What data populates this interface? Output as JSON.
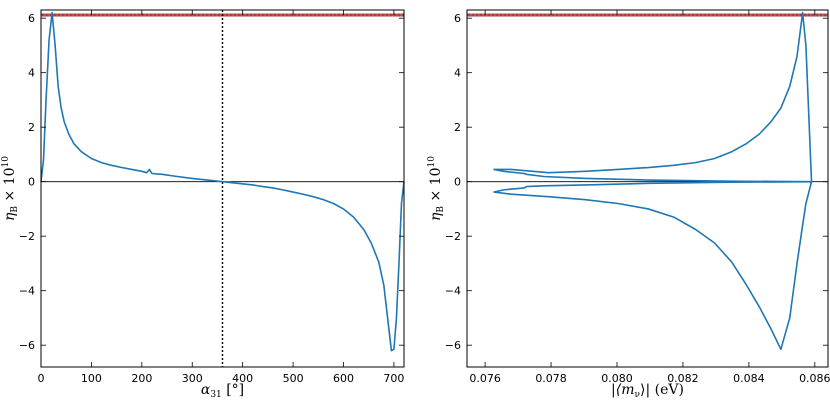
{
  "chart_data": [
    {
      "type": "line",
      "xlabel": {
        "main": "α",
        "sub": "31",
        "rest": " [°]"
      },
      "ylabel": {
        "main": "η",
        "sub": "B",
        "rest": " × 10",
        "sup": "10"
      },
      "xlim": [
        0,
        720
      ],
      "ylim": [
        -6.8,
        6.3
      ],
      "xticks": [
        0,
        100,
        200,
        300,
        400,
        500,
        600,
        700
      ],
      "yticks": [
        -6,
        -4,
        -2,
        0,
        2,
        4,
        6
      ],
      "xticklabels": [
        "0",
        "100",
        "200",
        "300",
        "400",
        "500",
        "600",
        "700"
      ],
      "yticklabels": [
        "−6",
        "−4",
        "−2",
        "0",
        "2",
        "4",
        "6"
      ],
      "observed_band": {
        "y_low": 6.07,
        "y_high": 6.17,
        "color": "#c0504d"
      },
      "hline": 0,
      "vline": 360,
      "series": [
        {
          "color": "#1f77b4",
          "x": [
            0,
            5,
            10,
            16,
            22,
            28,
            34,
            40,
            46,
            55,
            65,
            80,
            100,
            120,
            140,
            160,
            180,
            200,
            210,
            215,
            220,
            240,
            270,
            300,
            330,
            360,
            390,
            420,
            430,
            440,
            460,
            480,
            500,
            520,
            540,
            560,
            580,
            600,
            620,
            640,
            655,
            670,
            680,
            685,
            690,
            695,
            700,
            705,
            710,
            715,
            720
          ],
          "y": [
            0,
            0.8,
            3.0,
            5.2,
            6.2,
            5.0,
            3.5,
            2.7,
            2.2,
            1.75,
            1.4,
            1.1,
            0.85,
            0.7,
            0.6,
            0.52,
            0.45,
            0.38,
            0.33,
            0.45,
            0.3,
            0.27,
            0.19,
            0.12,
            0.06,
            0,
            -0.06,
            -0.12,
            -0.15,
            -0.18,
            -0.23,
            -0.3,
            -0.38,
            -0.46,
            -0.55,
            -0.66,
            -0.8,
            -1.0,
            -1.3,
            -1.75,
            -2.25,
            -2.95,
            -3.8,
            -4.6,
            -5.4,
            -6.2,
            -6.15,
            -5.0,
            -3.0,
            -0.8,
            0
          ]
        }
      ]
    },
    {
      "type": "line",
      "xlabel": {
        "main": "|⟨m",
        "sub": "ν",
        "rest": "⟩| (eV)"
      },
      "ylabel": {
        "main": "η",
        "sub": "B",
        "rest": " × 10",
        "sup": "10"
      },
      "xlim": [
        0.07545,
        0.0864
      ],
      "ylim": [
        -6.8,
        6.3
      ],
      "xticks": [
        0.076,
        0.078,
        0.08,
        0.082,
        0.084,
        0.086
      ],
      "yticks": [
        -6,
        -4,
        -2,
        0,
        2,
        4,
        6
      ],
      "xticklabels": [
        "0.076",
        "0.078",
        "0.080",
        "0.082",
        "0.084",
        "0.086"
      ],
      "yticklabels": [
        "−6",
        "−4",
        "−2",
        "0",
        "2",
        "4",
        "6"
      ],
      "observed_band": {
        "y_low": 6.07,
        "y_high": 6.17,
        "color": "#c0504d"
      },
      "hline": 0,
      "series": [
        {
          "color": "#1f77b4",
          "x": [
            0.0859,
            0.08573,
            0.08563,
            0.08546,
            0.08524,
            0.08497,
            0.08467,
            0.08432,
            0.08393,
            0.08348,
            0.08296,
            0.08238,
            0.08172,
            0.08095,
            0.08003,
            0.07904,
            0.07792,
            0.07679,
            0.07627,
            0.07656,
            0.07719,
            0.07725,
            0.07778,
            0.07906,
            0.08097,
            0.08342,
            0.0859,
            0.08342,
            0.08097,
            0.07906,
            0.07778,
            0.07725,
            0.07719,
            0.07656,
            0.07627,
            0.07679,
            0.07792,
            0.07904,
            0.08003,
            0.08095,
            0.08172,
            0.08238,
            0.08296,
            0.08348,
            0.08393,
            0.08432,
            0.08467,
            0.08497,
            0.08524,
            0.08546,
            0.08563,
            0.08573,
            0.0859
          ],
          "y": [
            0,
            5.0,
            6.2,
            4.6,
            3.5,
            2.7,
            2.2,
            1.75,
            1.4,
            1.1,
            0.85,
            0.7,
            0.6,
            0.52,
            0.45,
            0.38,
            0.33,
            0.45,
            0.45,
            0.38,
            0.3,
            0.27,
            0.19,
            0.12,
            0.06,
            0.02,
            0,
            -0.02,
            -0.06,
            -0.12,
            -0.15,
            -0.18,
            -0.23,
            -0.3,
            -0.38,
            -0.46,
            -0.55,
            -0.66,
            -0.8,
            -1.0,
            -1.3,
            -1.75,
            -2.25,
            -2.95,
            -3.8,
            -4.6,
            -5.4,
            -6.15,
            -5.0,
            -3.0,
            -1.6,
            -0.8,
            0
          ]
        }
      ]
    }
  ]
}
